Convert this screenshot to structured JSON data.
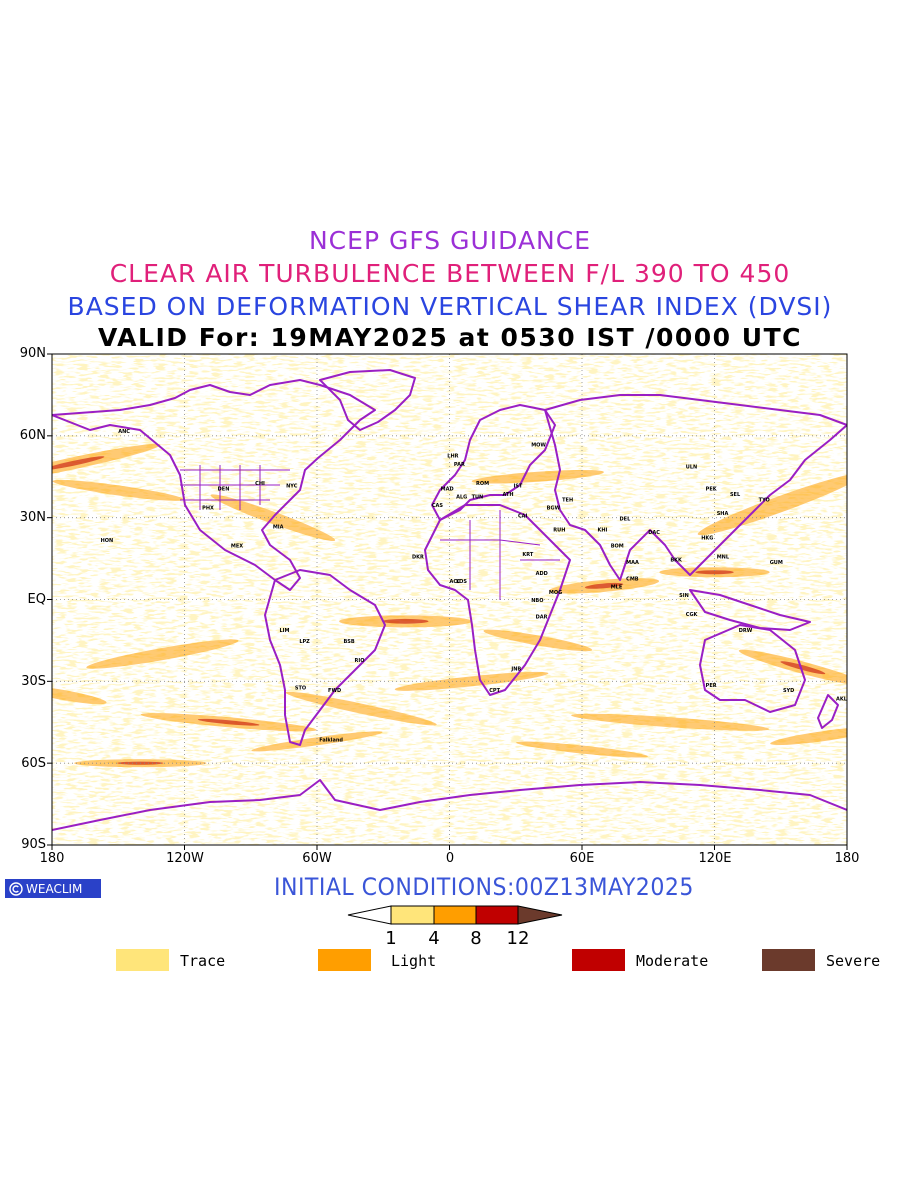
{
  "titles": {
    "line1": "NCEP GFS GUIDANCE",
    "line2": "CLEAR AIR TURBULENCE BETWEEN F/L 390 TO 450",
    "line3": "BASED ON DEFORMATION VERTICAL SHEAR INDEX (DVSI)",
    "line4": "VALID For: 19MAY2025 at 0530 IST /0000 UTC"
  },
  "colors": {
    "line1": "#9b30d6",
    "line2": "#e0207a",
    "line3": "#2a45e0",
    "line4": "#000000",
    "coast": "#9a1fc4",
    "trace": "#ffe57a",
    "light": "#ff9e00",
    "moderate": "#c00000",
    "severe": "#6b3a2c",
    "logo_bg": "#2a41c8"
  },
  "axes": {
    "lat_labels": [
      "90N",
      "60N",
      "30N",
      "EQ",
      "30S",
      "60S",
      "90S"
    ],
    "lon_labels": [
      "180",
      "120W",
      "60W",
      "0",
      "60E",
      "120E",
      "180"
    ]
  },
  "stations": [
    "ANC",
    "HON",
    "PHX",
    "DEN",
    "CHI",
    "NYC",
    "MIA",
    "MEX",
    "LIM",
    "LPZ",
    "STO",
    "BSB",
    "RIO",
    "FWD",
    "Falkland",
    "LHR",
    "PAR",
    "MAD",
    "ROM",
    "MOW",
    "CAI",
    "RUH",
    "TEH",
    "KHI",
    "DEL",
    "BOM",
    "MAA",
    "CMB",
    "MLE",
    "DAC",
    "BKK",
    "SIN",
    "HKG",
    "PEK",
    "SHA",
    "TYO",
    "SEL",
    "ULN",
    "MNL",
    "CGK",
    "GUM",
    "DRW",
    "PER",
    "SYD",
    "AKL",
    "NBO",
    "DAR",
    "JNB",
    "CPT",
    "LOS",
    "ACC",
    "DKR",
    "ADD",
    "MOG",
    "KRT",
    "TUN",
    "ALG",
    "CAS",
    "ATH",
    "IST",
    "BGW"
  ],
  "logo": {
    "text": "WEACLIM"
  },
  "footer": {
    "initial_conditions": "INITIAL  CONDITIONS:00Z13MAY2025"
  },
  "colorbar": {
    "ticks": [
      "1",
      "4",
      "8",
      "12"
    ]
  },
  "legend": [
    {
      "label": "Trace",
      "color": "#ffe57a"
    },
    {
      "label": "Light",
      "color": "#ff9e00"
    },
    {
      "label": "Moderate",
      "color": "#c00000"
    },
    {
      "label": "Severe",
      "color": "#6b3a2c"
    }
  ]
}
